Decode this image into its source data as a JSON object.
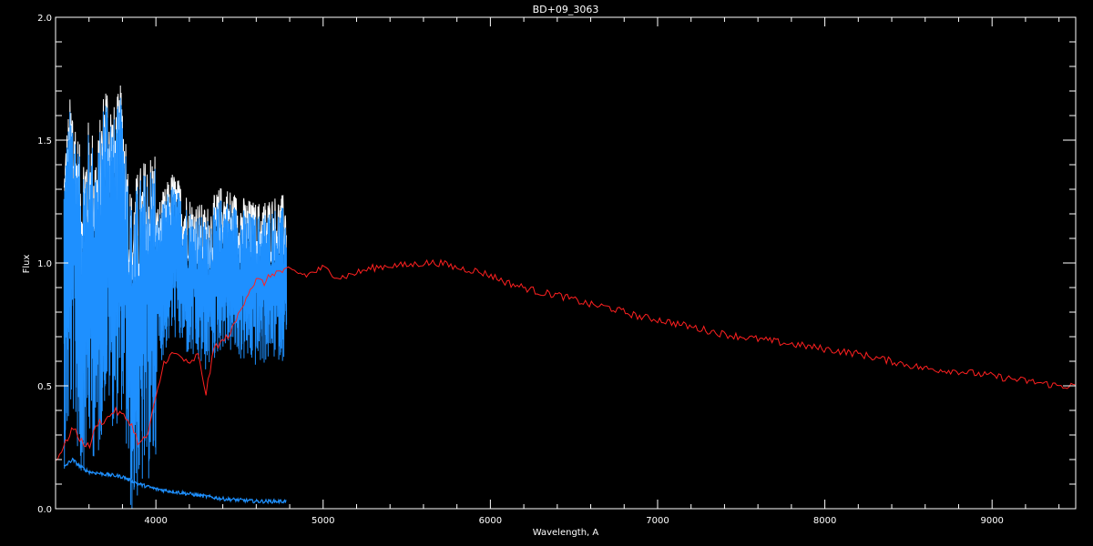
{
  "chart_data": {
    "type": "line",
    "title": "BD+09_3063",
    "xlabel": "Wavelength, A",
    "ylabel": "Flux",
    "xlim": [
      3400,
      9500
    ],
    "ylim": [
      0.0,
      2.0
    ],
    "xticks": [
      4000,
      5000,
      6000,
      7000,
      8000,
      9000
    ],
    "yticks": [
      0.0,
      0.5,
      1.0,
      1.5,
      2.0
    ],
    "ytick_labels": [
      "0.0",
      "0.5",
      "1.0",
      "1.5",
      "2.0"
    ],
    "grid": false,
    "colors": {
      "background": "#000000",
      "axes": "#ffffff",
      "observed_upper": "#ffffff",
      "observed": "#1e90ff",
      "model": "#ff2020",
      "error": "#1e90ff"
    },
    "series": [
      {
        "key": "observed",
        "x": [
          3450,
          3500,
          3550,
          3600,
          3650,
          3700,
          3750,
          3800,
          3850,
          3900,
          3950,
          4000,
          4100,
          4200,
          4300,
          4400,
          4500,
          4600,
          4700,
          4780
        ],
        "y": [
          0.9,
          1.15,
          0.85,
          1.0,
          0.9,
          1.2,
          1.05,
          1.15,
          0.7,
          0.8,
          0.85,
          0.9,
          1.05,
          0.95,
          0.9,
          1.0,
          0.95,
          0.92,
          0.95,
          0.95
        ]
      },
      {
        "key": "model",
        "x": [
          3400,
          3450,
          3500,
          3550,
          3600,
          3650,
          3700,
          3750,
          3800,
          3850,
          3900,
          3950,
          4000,
          4050,
          4100,
          4150,
          4200,
          4250,
          4300,
          4350,
          4400,
          4450,
          4500,
          4550,
          4600,
          4650,
          4700,
          4800,
          4900,
          5000,
          5100,
          5200,
          5300,
          5400,
          5500,
          5600,
          5700,
          5800,
          5900,
          6000,
          6100,
          6200,
          6300,
          6400,
          6500,
          6600,
          6700,
          6800,
          6900,
          7000,
          7200,
          7400,
          7600,
          7800,
          8000,
          8200,
          8400,
          8600,
          8800,
          9000,
          9200,
          9400,
          9500
        ],
        "y": [
          0.2,
          0.25,
          0.33,
          0.28,
          0.25,
          0.35,
          0.36,
          0.4,
          0.38,
          0.35,
          0.26,
          0.3,
          0.45,
          0.6,
          0.63,
          0.62,
          0.58,
          0.63,
          0.47,
          0.66,
          0.68,
          0.72,
          0.8,
          0.88,
          0.93,
          0.92,
          0.96,
          0.97,
          0.95,
          0.98,
          0.94,
          0.96,
          0.98,
          0.99,
          0.99,
          1.0,
          1.0,
          0.98,
          0.97,
          0.95,
          0.92,
          0.9,
          0.88,
          0.87,
          0.85,
          0.83,
          0.82,
          0.8,
          0.78,
          0.77,
          0.74,
          0.71,
          0.69,
          0.67,
          0.65,
          0.63,
          0.6,
          0.57,
          0.56,
          0.54,
          0.52,
          0.5,
          0.5
        ]
      },
      {
        "key": "error",
        "x": [
          3450,
          3500,
          3550,
          3600,
          3700,
          3800,
          3900,
          4000,
          4100,
          4200,
          4300,
          4400,
          4500,
          4600,
          4700,
          4780
        ],
        "y": [
          0.17,
          0.2,
          0.17,
          0.15,
          0.14,
          0.13,
          0.1,
          0.08,
          0.07,
          0.06,
          0.05,
          0.04,
          0.035,
          0.03,
          0.03,
          0.03
        ]
      }
    ]
  }
}
